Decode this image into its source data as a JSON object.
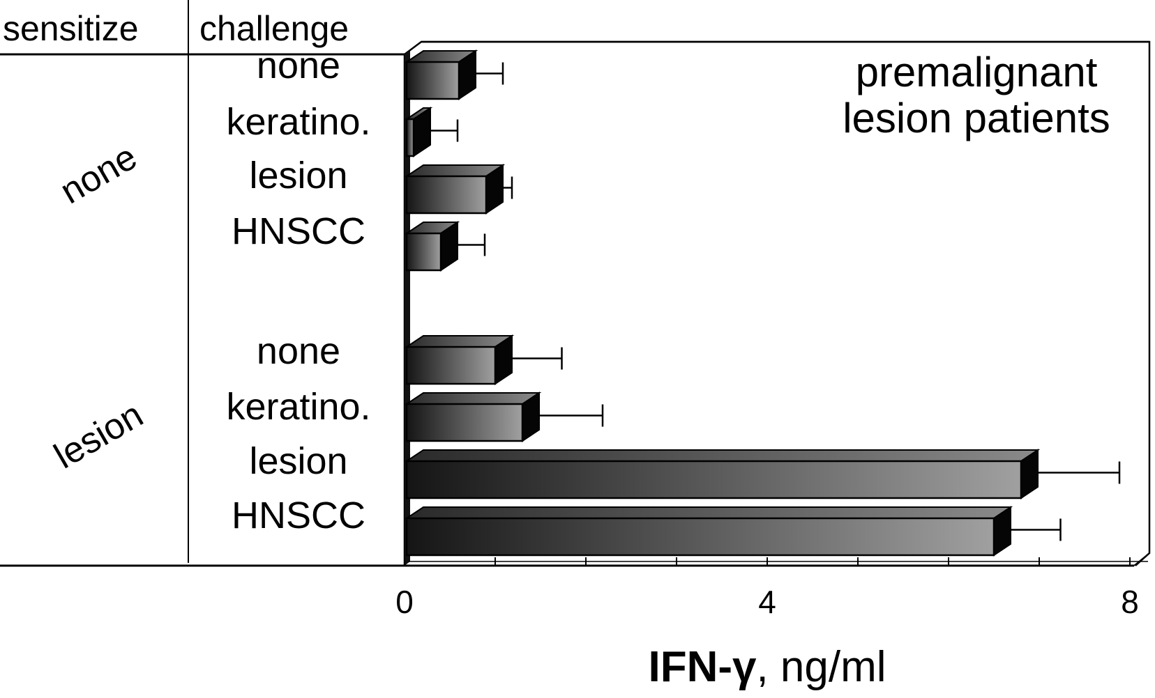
{
  "chart_data": {
    "type": "bar",
    "orientation": "horizontal",
    "table_headers": {
      "group": "sensitize",
      "category": "challenge"
    },
    "groups": [
      {
        "name": "none",
        "categories": [
          "none",
          "keratino.",
          "lesion",
          "HNSCC"
        ],
        "values": [
          0.6,
          0.1,
          0.9,
          0.4
        ],
        "errors": [
          0.3,
          0.3,
          0.1,
          0.3
        ]
      },
      {
        "name": "lesion",
        "categories": [
          "none",
          "keratino.",
          "lesion",
          "HNSCC"
        ],
        "values": [
          1.0,
          1.3,
          6.8,
          6.5
        ],
        "errors": [
          0.55,
          0.7,
          0.9,
          0.55
        ]
      }
    ],
    "annotation": [
      "premalignant",
      "lesion patients"
    ],
    "xlabel_bold": "IFN-γ",
    "xlabel_rest": ", ng/ml",
    "xticks": [
      "0",
      "4",
      "8"
    ],
    "xlim": [
      0,
      8
    ],
    "colors": {
      "bar_front_dark": "#1a1a1a",
      "bar_front_light": "#9a9a9a",
      "bar_top": "#5a5a5a",
      "bar_side": "#050505"
    }
  }
}
